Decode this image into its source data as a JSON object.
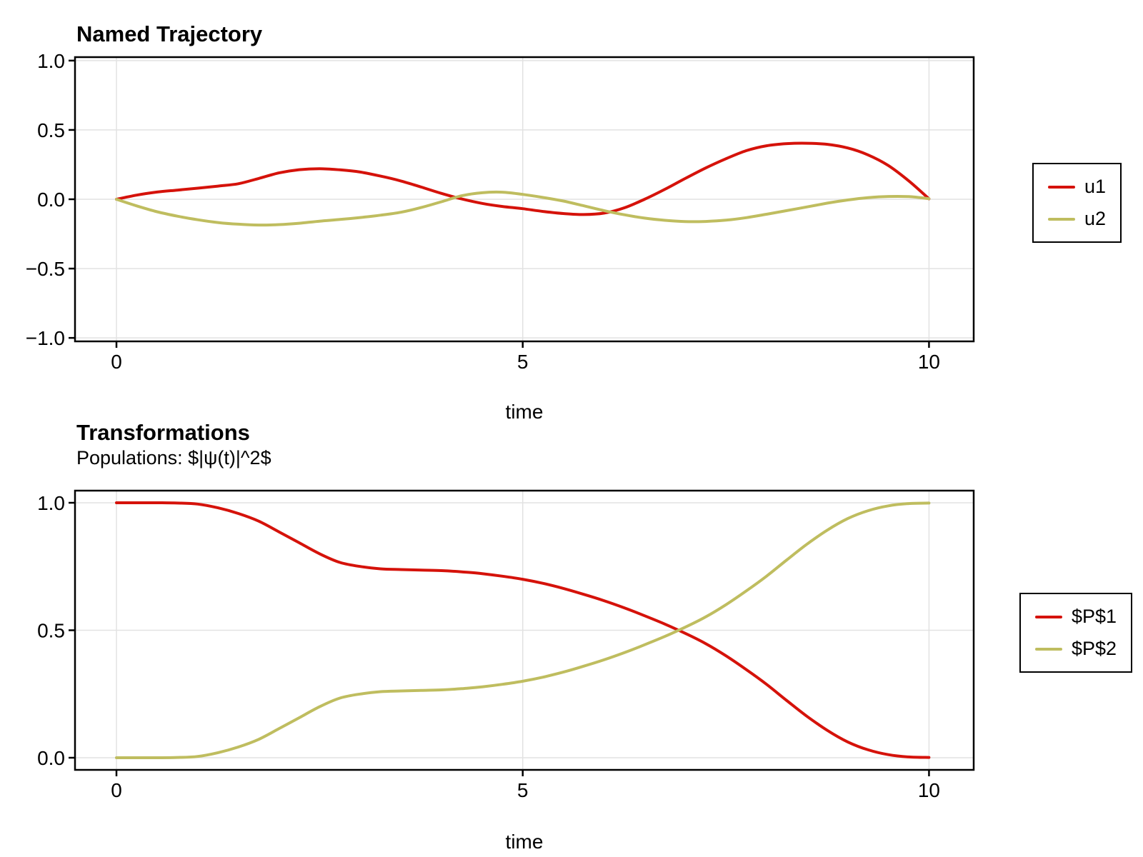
{
  "colors": {
    "series1": "#D5120A",
    "series2": "#BFBD5F",
    "grid": "#E2E2E2",
    "frame": "#000000",
    "background": "#FFFFFF"
  },
  "chart_data": [
    {
      "type": "line",
      "title": "Named Trajectory",
      "xlabel": "time",
      "ylabel": "",
      "xlim": [
        -0.51,
        10.55
      ],
      "ylim": [
        -1.025,
        1.025
      ],
      "grid": true,
      "legend_position": "right-outside",
      "xticks": [
        {
          "v": 0,
          "label": "0"
        },
        {
          "v": 5,
          "label": "5"
        },
        {
          "v": 10,
          "label": "10"
        }
      ],
      "yticks": [
        {
          "v": 1.0,
          "label": "1.0"
        },
        {
          "v": 0.5,
          "label": "0.5"
        },
        {
          "v": 0.0,
          "label": "0.0"
        },
        {
          "v": -0.5,
          "label": "−0.5"
        },
        {
          "v": -1.0,
          "label": "−1.0"
        }
      ],
      "x": [
        0,
        0.25,
        0.5,
        0.75,
        1,
        1.25,
        1.5,
        1.75,
        2,
        2.25,
        2.5,
        2.75,
        3,
        3.25,
        3.5,
        3.75,
        4,
        4.25,
        4.5,
        4.75,
        5,
        5.25,
        5.5,
        5.75,
        6,
        6.25,
        6.5,
        6.75,
        7,
        7.25,
        7.5,
        7.75,
        8,
        8.25,
        8.5,
        8.75,
        9,
        9.25,
        9.5,
        9.75,
        10
      ],
      "series": [
        {
          "name": "u1",
          "color": "#D5120A",
          "values": [
            0,
            0.03,
            0.052,
            0.066,
            0.08,
            0.095,
            0.112,
            0.15,
            0.19,
            0.213,
            0.22,
            0.212,
            0.196,
            0.167,
            0.132,
            0.088,
            0.042,
            0.002,
            -0.03,
            -0.052,
            -0.068,
            -0.088,
            -0.103,
            -0.11,
            -0.1,
            -0.062,
            0,
            0.072,
            0.15,
            0.225,
            0.292,
            0.35,
            0.386,
            0.401,
            0.404,
            0.396,
            0.37,
            0.32,
            0.243,
            0.133,
            0.003
          ]
        },
        {
          "name": "u2",
          "color": "#BFBD5F",
          "values": [
            0,
            -0.048,
            -0.09,
            -0.122,
            -0.148,
            -0.168,
            -0.18,
            -0.186,
            -0.183,
            -0.173,
            -0.158,
            -0.146,
            -0.132,
            -0.115,
            -0.094,
            -0.06,
            -0.018,
            0.025,
            0.047,
            0.051,
            0.035,
            0.013,
            -0.013,
            -0.047,
            -0.082,
            -0.112,
            -0.136,
            -0.152,
            -0.161,
            -0.16,
            -0.151,
            -0.133,
            -0.108,
            -0.082,
            -0.055,
            -0.028,
            -0.005,
            0.012,
            0.02,
            0.019,
            0.004
          ]
        }
      ]
    },
    {
      "type": "line",
      "title": "Transformations",
      "subtitle": "Populations: $|ψ(t)|^2$",
      "xlabel": "time",
      "ylabel": "",
      "xlim": [
        -0.51,
        10.55
      ],
      "ylim": [
        -0.0476,
        1.0476
      ],
      "grid": true,
      "legend_position": "right-outside",
      "xticks": [
        {
          "v": 0,
          "label": "0"
        },
        {
          "v": 5,
          "label": "5"
        },
        {
          "v": 10,
          "label": "10"
        }
      ],
      "yticks": [
        {
          "v": 1.0,
          "label": "1.0"
        },
        {
          "v": 0.5,
          "label": "0.5"
        },
        {
          "v": 0.0,
          "label": "0.0"
        }
      ],
      "x": [
        0,
        0.25,
        0.5,
        0.75,
        1,
        1.25,
        1.5,
        1.75,
        2,
        2.25,
        2.5,
        2.75,
        3,
        3.25,
        3.5,
        3.75,
        4,
        4.25,
        4.5,
        4.75,
        5,
        5.25,
        5.5,
        5.75,
        6,
        6.25,
        6.5,
        6.75,
        7,
        7.25,
        7.5,
        7.75,
        8,
        8.25,
        8.5,
        8.75,
        9,
        9.25,
        9.5,
        9.75,
        10
      ],
      "series": [
        {
          "name": "$P$1",
          "color": "#D5120A",
          "values": [
            1,
            1,
            1,
            0.999,
            0.995,
            0.98,
            0.958,
            0.928,
            0.886,
            0.843,
            0.8,
            0.766,
            0.75,
            0.741,
            0.738,
            0.736,
            0.734,
            0.729,
            0.722,
            0.712,
            0.7,
            0.684,
            0.664,
            0.641,
            0.616,
            0.588,
            0.557,
            0.524,
            0.488,
            0.448,
            0.4,
            0.346,
            0.288,
            0.224,
            0.162,
            0.107,
            0.062,
            0.031,
            0.012,
            0.003,
            0.001
          ]
        },
        {
          "name": "$P$2",
          "color": "#BFBD5F",
          "values": [
            0,
            0,
            0,
            0.001,
            0.005,
            0.02,
            0.042,
            0.072,
            0.114,
            0.157,
            0.2,
            0.234,
            0.25,
            0.259,
            0.262,
            0.264,
            0.266,
            0.271,
            0.278,
            0.288,
            0.3,
            0.316,
            0.336,
            0.359,
            0.384,
            0.412,
            0.443,
            0.476,
            0.512,
            0.552,
            0.6,
            0.654,
            0.712,
            0.776,
            0.838,
            0.893,
            0.938,
            0.969,
            0.988,
            0.997,
            0.999
          ]
        }
      ]
    }
  ]
}
